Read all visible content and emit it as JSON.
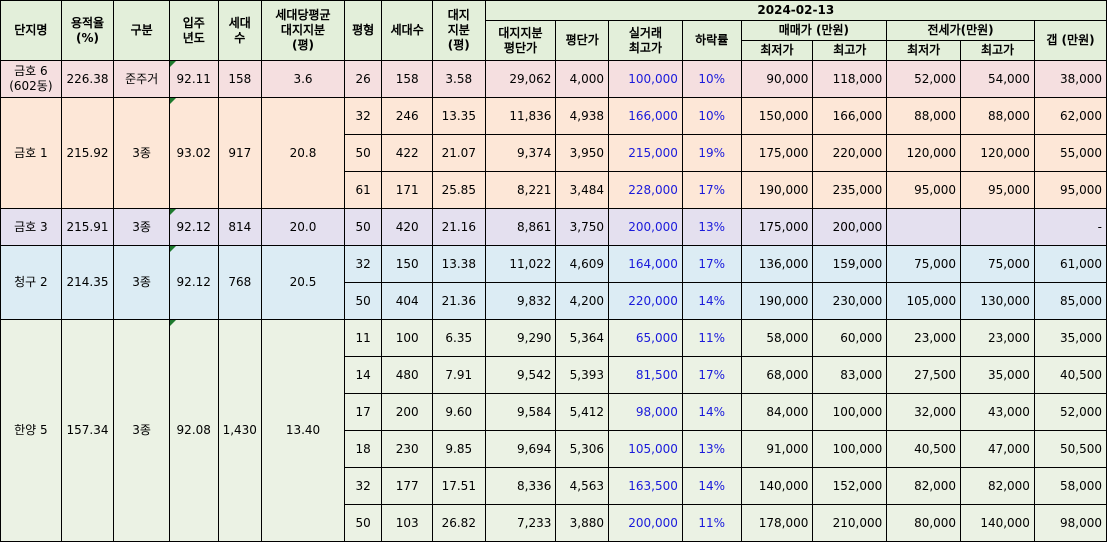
{
  "header": {
    "date": "2024-02-13",
    "complex": "단지명",
    "far": "용적율\n(%)",
    "type": "구분",
    "moveIn": "입주\n년도",
    "households": "세대\n수",
    "avgLandShare": "세대당평균\n대지지분\n(평)",
    "pyeong": "평형",
    "unitCount": "세대수",
    "landShare": "대지\n지분\n(평)",
    "landPrice": "대지지분\n평단가",
    "pricePerPyeong": "평단가",
    "maxDeal": "실거래\n최고가",
    "dropRate": "하락률",
    "sale": "매매가 (만원)",
    "lease": "전세가(만원)",
    "min": "최저가",
    "max": "최고가",
    "gap": "갭 (만원)"
  },
  "groups": [
    {
      "name": "금호 6\n(602동)",
      "far": "226.38",
      "type": "준주거",
      "moveIn": "92.11",
      "households": "158",
      "avgLand": "3.6",
      "color": "bg-pink",
      "rows": [
        {
          "p": "26",
          "n": "158",
          "ls": "3.58",
          "lp": "29,062",
          "pp": "4,000",
          "md": "100,000",
          "dr": "10%",
          "smin": "90,000",
          "smax": "118,000",
          "lmin": "52,000",
          "lmax": "54,000",
          "gap": "38,000"
        }
      ]
    },
    {
      "name": "금호 1",
      "far": "215.92",
      "type": "3종",
      "moveIn": "93.02",
      "households": "917",
      "avgLand": "20.8",
      "color": "bg-peach",
      "rows": [
        {
          "p": "32",
          "n": "246",
          "ls": "13.35",
          "lp": "11,836",
          "pp": "4,938",
          "md": "166,000",
          "dr": "10%",
          "smin": "150,000",
          "smax": "166,000",
          "lmin": "88,000",
          "lmax": "88,000",
          "gap": "62,000"
        },
        {
          "p": "50",
          "n": "422",
          "ls": "21.07",
          "lp": "9,374",
          "pp": "3,950",
          "md": "215,000",
          "dr": "19%",
          "smin": "175,000",
          "smax": "220,000",
          "lmin": "120,000",
          "lmax": "120,000",
          "gap": "55,000"
        },
        {
          "p": "61",
          "n": "171",
          "ls": "25.85",
          "lp": "8,221",
          "pp": "3,484",
          "md": "228,000",
          "dr": "17%",
          "smin": "190,000",
          "smax": "235,000",
          "lmin": "95,000",
          "lmax": "95,000",
          "gap": "95,000"
        }
      ]
    },
    {
      "name": "금호 3",
      "far": "215.91",
      "type": "3종",
      "moveIn": "92.12",
      "households": "814",
      "avgLand": "20.0",
      "color": "bg-lav",
      "rows": [
        {
          "p": "50",
          "n": "420",
          "ls": "21.16",
          "lp": "8,861",
          "pp": "3,750",
          "md": "200,000",
          "dr": "13%",
          "smin": "175,000",
          "smax": "200,000",
          "lmin": "",
          "lmax": "",
          "gap": "-"
        }
      ]
    },
    {
      "name": "청구 2",
      "far": "214.35",
      "type": "3종",
      "moveIn": "92.12",
      "households": "768",
      "avgLand": "20.5",
      "color": "bg-blue",
      "rows": [
        {
          "p": "32",
          "n": "150",
          "ls": "13.38",
          "lp": "11,022",
          "pp": "4,609",
          "md": "164,000",
          "dr": "17%",
          "smin": "136,000",
          "smax": "159,000",
          "lmin": "75,000",
          "lmax": "75,000",
          "gap": "61,000"
        },
        {
          "p": "50",
          "n": "404",
          "ls": "21.36",
          "lp": "9,832",
          "pp": "4,200",
          "md": "220,000",
          "dr": "14%",
          "smin": "190,000",
          "smax": "230,000",
          "lmin": "105,000",
          "lmax": "130,000",
          "gap": "85,000"
        }
      ]
    },
    {
      "name": "한양 5",
      "far": "157.34",
      "type": "3종",
      "moveIn": "92.08",
      "households": "1,430",
      "avgLand": "13.40",
      "color": "bg-green",
      "rows": [
        {
          "p": "11",
          "n": "100",
          "ls": "6.35",
          "lp": "9,290",
          "pp": "5,364",
          "md": "65,000",
          "dr": "11%",
          "smin": "58,000",
          "smax": "60,000",
          "lmin": "23,000",
          "lmax": "23,000",
          "gap": "35,000"
        },
        {
          "p": "14",
          "n": "480",
          "ls": "7.91",
          "lp": "9,542",
          "pp": "5,393",
          "md": "81,500",
          "dr": "17%",
          "smin": "68,000",
          "smax": "83,000",
          "lmin": "27,500",
          "lmax": "35,000",
          "gap": "40,500"
        },
        {
          "p": "17",
          "n": "200",
          "ls": "9.60",
          "lp": "9,584",
          "pp": "5,412",
          "md": "98,000",
          "dr": "14%",
          "smin": "84,000",
          "smax": "100,000",
          "lmin": "32,000",
          "lmax": "43,000",
          "gap": "52,000"
        },
        {
          "p": "18",
          "n": "230",
          "ls": "9.85",
          "lp": "9,694",
          "pp": "5,306",
          "md": "105,000",
          "dr": "13%",
          "smin": "91,000",
          "smax": "100,000",
          "lmin": "40,500",
          "lmax": "47,000",
          "gap": "50,500"
        },
        {
          "p": "32",
          "n": "177",
          "ls": "17.51",
          "lp": "8,336",
          "pp": "4,563",
          "md": "163,500",
          "dr": "14%",
          "smin": "140,000",
          "smax": "152,000",
          "lmin": "82,000",
          "lmax": "82,000",
          "gap": "58,000"
        },
        {
          "p": "50",
          "n": "103",
          "ls": "26.82",
          "lp": "7,233",
          "pp": "3,880",
          "md": "200,000",
          "dr": "11%",
          "smin": "178,000",
          "smax": "210,000",
          "lmin": "80,000",
          "lmax": "140,000",
          "gap": "98,000"
        }
      ]
    }
  ]
}
